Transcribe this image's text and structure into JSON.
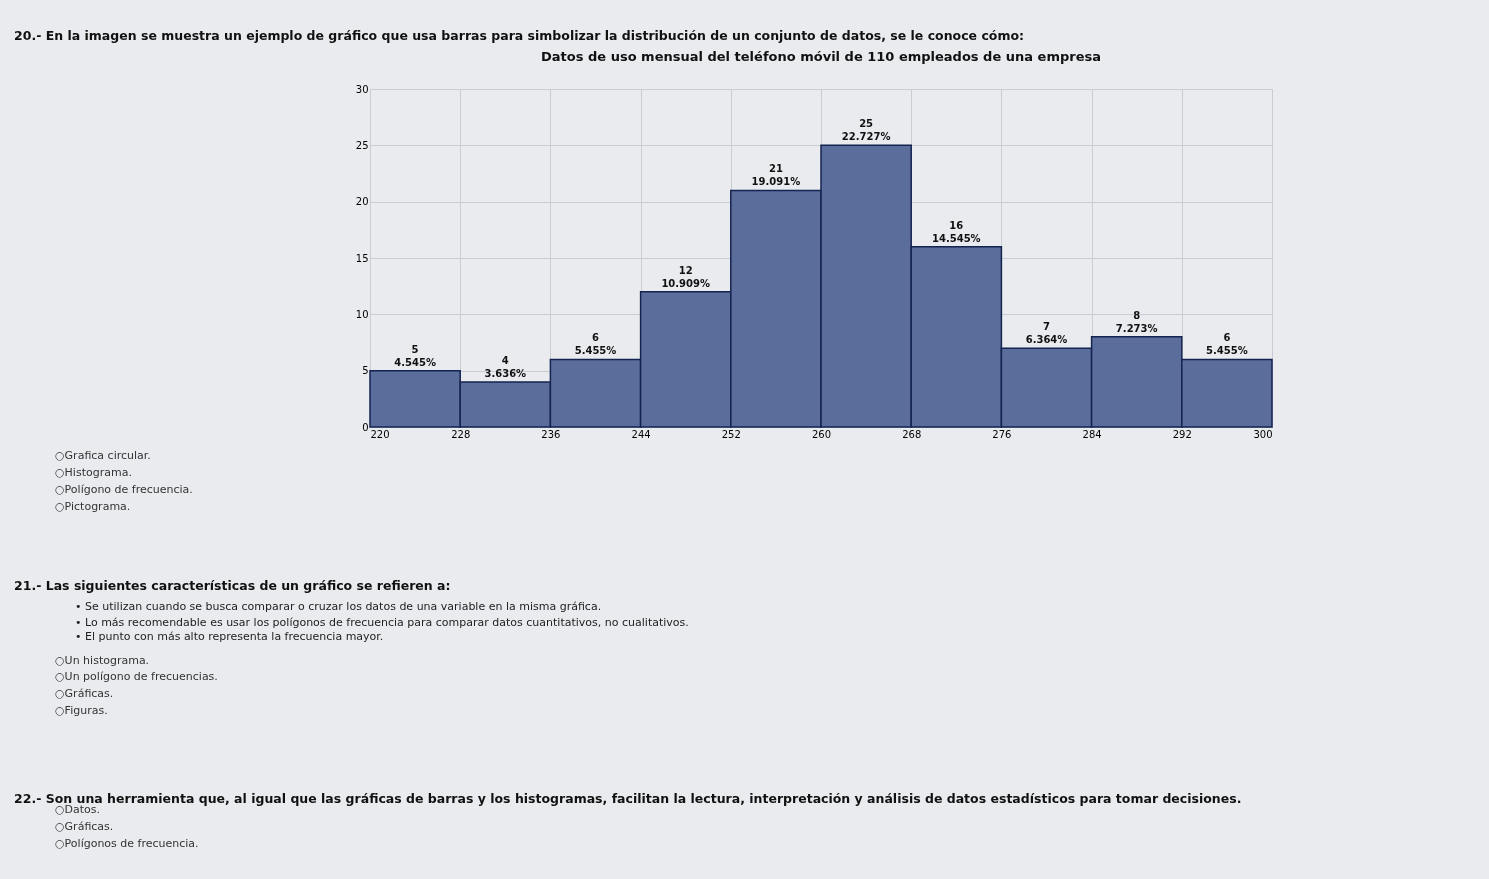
{
  "chart_data": {
    "type": "histogram",
    "title": "Datos de uso mensual del teléfono móvil de 110 empleados de una empresa",
    "bins": [
      220,
      228,
      236,
      244,
      252,
      260,
      268,
      276,
      284,
      292,
      300
    ],
    "values": [
      5,
      4,
      6,
      12,
      21,
      25,
      16,
      7,
      8,
      6
    ],
    "value_labels": [
      "5\n4.545%",
      "4\n3.636%",
      "6\n5.455%",
      "12\n10.909%",
      "21\n19.091%",
      "25\n22.727%",
      "16\n14.545%",
      "7\n6.364%",
      "8\n7.273%",
      "6\n5.455%"
    ],
    "color": "#5a6d9b",
    "xlim": [
      220,
      300
    ],
    "xticks": [
      220,
      228,
      236,
      244,
      252,
      260,
      268,
      276,
      284,
      292,
      300
    ],
    "ylim": [
      0,
      30
    ],
    "yticks": [
      0,
      5,
      10,
      15,
      20,
      25,
      30
    ],
    "grid": true,
    "annotations": [
      "20.- En la imagen se muestra un ejemplo de gráfico que usa barras para simbolizar la distribución de un conjunto de datos, se le conoce cómo:",
      "○Grafica circular.",
      "○Histograma.",
      "○Polígono de frecuencia.",
      "○Pictograma.",
      "21.- Las siguientes características de un gráfico se refieren a:",
      "• Se utilizan cuando se busca comparar o cruzar los datos de una variable en la misma gráfica.",
      "• Lo más recomendable es usar los polígonos de frecuencia para comparar datos cuantitativos, no cualitativos.",
      "• El punto con más alto representa la frecuencia mayor.",
      "○Un histograma.",
      "○Un polígono de frecuencias.",
      "○Gráficas.",
      "○Figuras.",
      "22.- Son una herramienta que, al igual que las gráficas de barras y los histogramas, facilitan la lectura, interpretación y análisis de datos estadísticos para tomar decisiones.",
      "○Datos.",
      "○Gráficas.",
      "○Polígonos de frecuencia."
    ]
  }
}
